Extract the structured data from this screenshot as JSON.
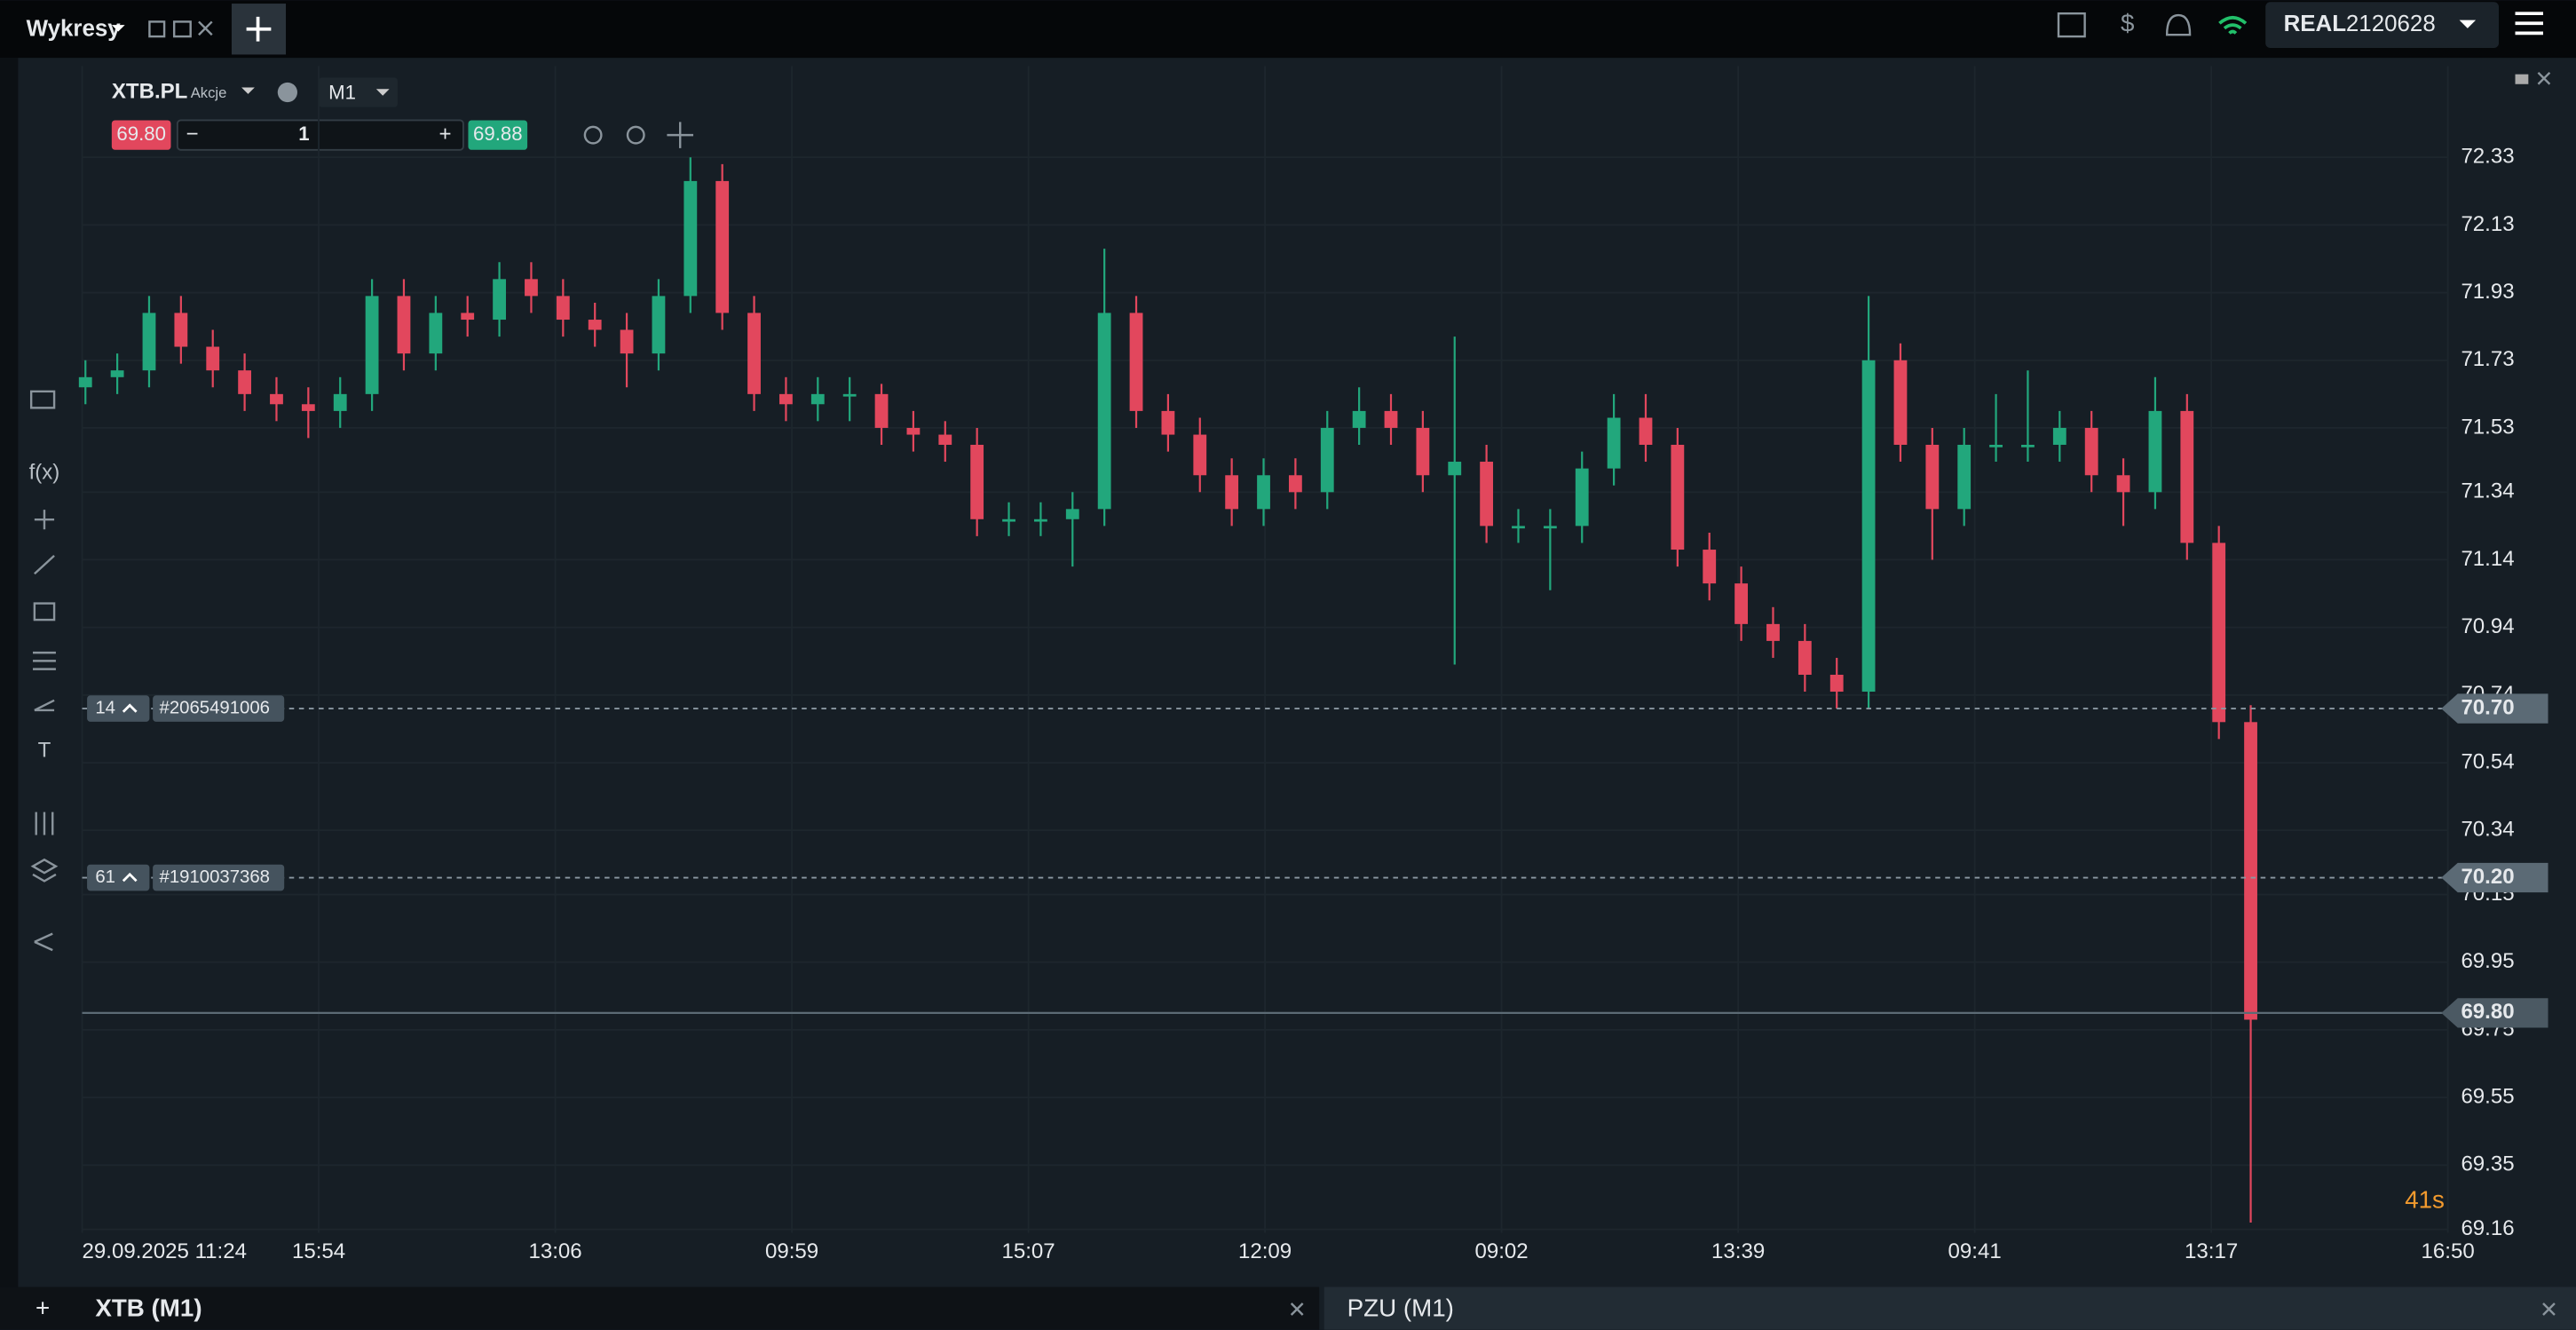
{
  "header": {
    "menu": "Wykresy",
    "account_type": "REAL",
    "account_number": "2120628"
  },
  "instrument": {
    "symbol": "XTB.PL",
    "kind": "Akcje",
    "interval": "M1",
    "sell": "69.80",
    "volume": "1",
    "buy": "69.88"
  },
  "toolbar": [
    "f(x)",
    "T"
  ],
  "countdown": "41s",
  "tabs": [
    "XTB (M1)",
    "PZU (M1)"
  ],
  "chart_data": {
    "type": "candlestick",
    "up_color": "#22a77c",
    "down_color": "#e2475d",
    "grid": true,
    "ylim": [
      69.15,
      72.6
    ],
    "yticks": [
      72.33,
      72.13,
      71.93,
      71.73,
      71.53,
      71.34,
      71.14,
      70.94,
      70.74,
      70.54,
      70.34,
      70.15,
      69.95,
      69.75,
      69.55,
      69.35,
      69.16
    ],
    "xlabels": [
      "29.09.2025 11:24",
      "15:54",
      "13:06",
      "09:59",
      "15:07",
      "12:09",
      "09:02",
      "13:39",
      "09:41",
      "13:17",
      "16:50"
    ],
    "candles": [
      [
        71.65,
        71.73,
        71.6,
        71.68
      ],
      [
        71.68,
        71.75,
        71.63,
        71.7
      ],
      [
        71.7,
        71.92,
        71.65,
        71.87
      ],
      [
        71.87,
        71.92,
        71.72,
        71.77
      ],
      [
        71.77,
        71.82,
        71.65,
        71.7
      ],
      [
        71.7,
        71.75,
        71.58,
        71.63
      ],
      [
        71.63,
        71.68,
        71.55,
        71.6
      ],
      [
        71.6,
        71.65,
        71.5,
        71.58
      ],
      [
        71.58,
        71.68,
        71.53,
        71.63
      ],
      [
        71.63,
        71.97,
        71.58,
        71.92
      ],
      [
        71.92,
        71.97,
        71.7,
        71.75
      ],
      [
        71.75,
        71.92,
        71.7,
        71.87
      ],
      [
        71.87,
        71.92,
        71.8,
        71.85
      ],
      [
        71.85,
        72.02,
        71.8,
        71.97
      ],
      [
        71.97,
        72.02,
        71.87,
        71.92
      ],
      [
        71.92,
        71.97,
        71.8,
        71.85
      ],
      [
        71.85,
        71.9,
        71.77,
        71.82
      ],
      [
        71.82,
        71.87,
        71.65,
        71.75
      ],
      [
        71.75,
        71.97,
        71.7,
        71.92
      ],
      [
        71.92,
        72.33,
        71.87,
        72.26
      ],
      [
        72.26,
        72.31,
        71.82,
        71.87
      ],
      [
        71.87,
        71.92,
        71.58,
        71.63
      ],
      [
        71.63,
        71.68,
        71.55,
        71.6
      ],
      [
        71.6,
        71.68,
        71.55,
        71.63
      ],
      [
        71.63,
        71.68,
        71.55,
        71.63
      ],
      [
        71.63,
        71.66,
        71.48,
        71.53
      ],
      [
        71.53,
        71.58,
        71.46,
        71.51
      ],
      [
        71.51,
        71.55,
        71.43,
        71.48
      ],
      [
        71.48,
        71.53,
        71.21,
        71.26
      ],
      [
        71.26,
        71.31,
        71.21,
        71.26
      ],
      [
        71.26,
        71.31,
        71.21,
        71.26
      ],
      [
        71.26,
        71.34,
        71.12,
        71.29
      ],
      [
        71.29,
        72.06,
        71.24,
        71.87
      ],
      [
        71.87,
        71.92,
        71.53,
        71.58
      ],
      [
        71.58,
        71.63,
        71.46,
        71.51
      ],
      [
        71.51,
        71.56,
        71.34,
        71.39
      ],
      [
        71.39,
        71.44,
        71.24,
        71.29
      ],
      [
        71.29,
        71.44,
        71.24,
        71.39
      ],
      [
        71.39,
        71.44,
        71.29,
        71.34
      ],
      [
        71.34,
        71.58,
        71.29,
        71.53
      ],
      [
        71.53,
        71.65,
        71.48,
        71.58
      ],
      [
        71.58,
        71.63,
        71.48,
        71.53
      ],
      [
        71.53,
        71.58,
        71.34,
        71.39
      ],
      [
        71.39,
        71.8,
        70.83,
        71.43
      ],
      [
        71.43,
        71.48,
        71.19,
        71.24
      ],
      [
        71.24,
        71.29,
        71.19,
        71.24
      ],
      [
        71.24,
        71.29,
        71.05,
        71.24
      ],
      [
        71.24,
        71.46,
        71.19,
        71.41
      ],
      [
        71.41,
        71.63,
        71.36,
        71.56
      ],
      [
        71.56,
        71.63,
        71.43,
        71.48
      ],
      [
        71.48,
        71.53,
        71.12,
        71.17
      ],
      [
        71.17,
        71.22,
        71.02,
        71.07
      ],
      [
        71.07,
        71.12,
        70.9,
        70.95
      ],
      [
        70.95,
        71.0,
        70.85,
        70.9
      ],
      [
        70.9,
        70.95,
        70.75,
        70.8
      ],
      [
        70.8,
        70.85,
        70.7,
        70.75
      ],
      [
        70.75,
        71.92,
        70.7,
        71.73
      ],
      [
        71.73,
        71.78,
        71.43,
        71.48
      ],
      [
        71.48,
        71.53,
        71.14,
        71.29
      ],
      [
        71.29,
        71.53,
        71.24,
        71.48
      ],
      [
        71.48,
        71.63,
        71.43,
        71.48
      ],
      [
        71.48,
        71.7,
        71.43,
        71.48
      ],
      [
        71.48,
        71.58,
        71.43,
        71.53
      ],
      [
        71.53,
        71.58,
        71.34,
        71.39
      ],
      [
        71.39,
        71.44,
        71.24,
        71.34
      ],
      [
        71.34,
        71.68,
        71.29,
        71.58
      ],
      [
        71.58,
        71.63,
        71.14,
        71.19
      ],
      [
        71.19,
        71.24,
        70.61,
        70.66
      ],
      [
        70.66,
        70.71,
        69.18,
        69.78
      ]
    ],
    "orders": [
      {
        "quantity": 14,
        "id": "#2065491006",
        "price": {
          "value": 70.7,
          "label": "70.70"
        }
      },
      {
        "quantity": 61,
        "id": "#1910037368",
        "price": {
          "value": 70.2,
          "label": "70.20"
        }
      }
    ],
    "current_price": {
      "value": 69.8,
      "label": "69.80"
    }
  }
}
